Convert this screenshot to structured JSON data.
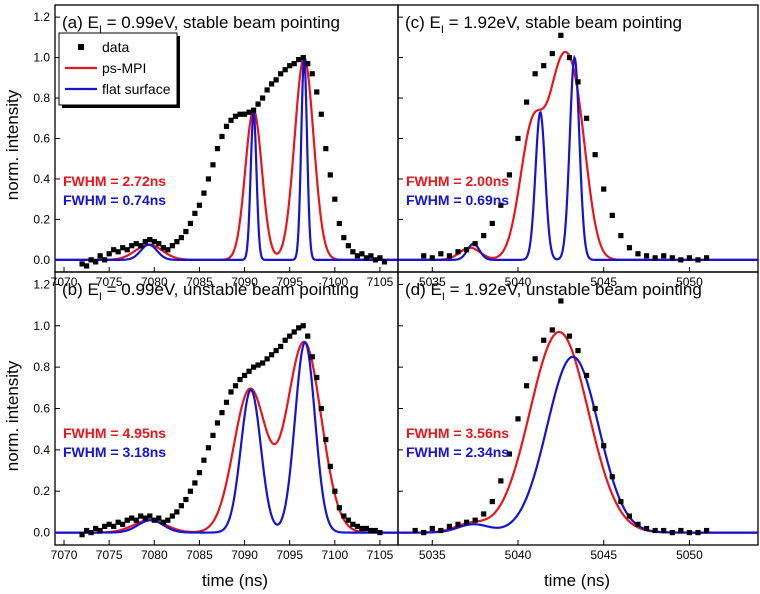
{
  "figure": {
    "ylabel": "norm. intensity",
    "xlabel": "time (ns)",
    "legend": {
      "placement": "top-left of panel (a)",
      "entries": [
        {
          "label": "data",
          "color": "#000000",
          "marker": "square"
        },
        {
          "label": "ps-MPI",
          "color": "#e8161b",
          "marker": "line"
        },
        {
          "label": "flat surface",
          "color": "#1414d2",
          "marker": "line"
        }
      ]
    },
    "colors": {
      "data": "#000000",
      "mpi": "#e8161b",
      "flat": "#1414d2"
    }
  },
  "chart_data": [
    {
      "panel": "a",
      "type": "line",
      "title_pre": "(a) E",
      "title_sub": "I",
      "title_post": " = 0.99eV, stable beam pointing",
      "xlim": [
        7069,
        7107
      ],
      "ylim": [
        -0.06,
        1.26
      ],
      "yticks": [
        "0.0",
        "0.2",
        "0.4",
        "0.6",
        "0.8",
        "1.0",
        "1.2"
      ],
      "ytick_values": [
        0,
        0.2,
        0.4,
        0.6,
        0.8,
        1.0,
        1.2
      ],
      "xticks": [
        "7070",
        "7075",
        "7080",
        "7085",
        "7090",
        "7095",
        "7100",
        "7105"
      ],
      "xtick_values": [
        7070,
        7075,
        7080,
        7085,
        7090,
        7095,
        7100,
        7105
      ],
      "fwhm_red": "FWHM = 2.72ns",
      "fwhm_blue": "FWHM = 0.74ns",
      "series": [
        {
          "name": "data",
          "kind": "scatter",
          "x": [
            7072.0,
            7072.5,
            7073.0,
            7073.5,
            7074.0,
            7074.5,
            7075.0,
            7075.5,
            7076.0,
            7076.5,
            7077.0,
            7077.5,
            7078.0,
            7078.5,
            7079.0,
            7079.5,
            7080.0,
            7080.5,
            7081.0,
            7081.5,
            7082.0,
            7082.5,
            7083.0,
            7083.5,
            7084.0,
            7084.5,
            7085.0,
            7085.5,
            7086.0,
            7086.5,
            7087.0,
            7087.5,
            7088.0,
            7088.5,
            7089.0,
            7089.5,
            7090.0,
            7090.5,
            7091.0,
            7091.5,
            7092.0,
            7092.5,
            7093.0,
            7093.5,
            7094.0,
            7094.5,
            7095.0,
            7095.5,
            7096.0,
            7096.5,
            7097.0,
            7097.5,
            7098.0,
            7098.5,
            7099.0,
            7099.5,
            7100.0,
            7100.5,
            7101.0,
            7101.5,
            7102.0,
            7102.5,
            7103.0,
            7103.5,
            7104.0,
            7104.5,
            7105.0,
            7105.5
          ],
          "y": [
            -0.02,
            -0.03,
            0.0,
            -0.01,
            0.02,
            0.0,
            0.03,
            0.05,
            0.04,
            0.06,
            0.05,
            0.07,
            0.08,
            0.07,
            0.09,
            0.1,
            0.09,
            0.08,
            0.06,
            0.05,
            0.07,
            0.09,
            0.11,
            0.14,
            0.18,
            0.23,
            0.27,
            0.33,
            0.4,
            0.47,
            0.55,
            0.61,
            0.66,
            0.69,
            0.71,
            0.72,
            0.72,
            0.73,
            0.74,
            0.77,
            0.8,
            0.84,
            0.87,
            0.89,
            0.92,
            0.94,
            0.96,
            0.97,
            0.99,
            1.0,
            0.97,
            0.92,
            0.83,
            0.72,
            0.55,
            0.42,
            0.3,
            0.18,
            0.11,
            0.07,
            0.04,
            0.02,
            0.03,
            0.01,
            0.02,
            0.0,
            0.01,
            -0.01
          ]
        },
        {
          "name": "ps-MPI",
          "kind": "line",
          "components": [
            [
              0.075,
              7079.4,
              1.5
            ],
            [
              0.74,
              7091.0,
              0.92
            ],
            [
              1.0,
              7096.6,
              1.05
            ]
          ]
        },
        {
          "name": "flat surface",
          "kind": "line",
          "components": [
            [
              0.075,
              7079.4,
              0.9
            ],
            [
              0.73,
              7091.0,
              0.32
            ],
            [
              1.0,
              7096.6,
              0.32
            ]
          ]
        }
      ]
    },
    {
      "panel": "c",
      "type": "line",
      "title_pre": "(c) E",
      "title_sub": "I",
      "title_post": " = 1.92eV, stable beam pointing",
      "xlim": [
        5033,
        5054
      ],
      "ylim": [
        -0.06,
        1.26
      ],
      "yticks": [],
      "ytick_values": [],
      "xticks": [
        "5035",
        "5040",
        "5045",
        "5050"
      ],
      "xtick_values": [
        5035,
        5040,
        5045,
        5050
      ],
      "fwhm_red": "FWHM = 2.00ns",
      "fwhm_blue": "FWHM = 0.69ns",
      "series": [
        {
          "name": "data",
          "kind": "scatter",
          "x": [
            5034.5,
            5035.0,
            5035.5,
            5036.0,
            5036.5,
            5037.0,
            5037.5,
            5038.0,
            5038.5,
            5039.0,
            5039.5,
            5040.0,
            5040.5,
            5041.0,
            5041.5,
            5042.0,
            5042.5,
            5043.0,
            5043.5,
            5044.0,
            5044.5,
            5045.0,
            5045.5,
            5046.0,
            5046.5,
            5047.0,
            5047.5,
            5048.0,
            5048.5,
            5049.0,
            5049.5,
            5050.0,
            5050.5,
            5051.0
          ],
          "y": [
            0.02,
            0.01,
            0.03,
            0.02,
            0.04,
            0.05,
            0.08,
            0.12,
            0.18,
            0.27,
            0.42,
            0.6,
            0.78,
            0.92,
            0.96,
            1.02,
            1.11,
            1.0,
            0.88,
            0.7,
            0.52,
            0.35,
            0.22,
            0.12,
            0.06,
            0.03,
            0.02,
            0.01,
            0.02,
            0.01,
            0.0,
            0.01,
            0.0,
            0.01
          ]
        },
        {
          "name": "ps-MPI",
          "kind": "line",
          "components": [
            [
              0.06,
              5037.2,
              0.6
            ],
            [
              0.68,
              5040.9,
              0.75
            ],
            [
              0.56,
              5042.3,
              0.6
            ],
            [
              0.78,
              5043.3,
              0.7
            ]
          ]
        },
        {
          "name": "flat surface",
          "kind": "line",
          "components": [
            [
              0.08,
              5037.4,
              0.35
            ],
            [
              0.73,
              5041.3,
              0.28
            ],
            [
              1.0,
              5043.3,
              0.28
            ]
          ]
        }
      ]
    },
    {
      "panel": "b",
      "type": "line",
      "title_pre": "(b) E",
      "title_sub": "I",
      "title_post": " = 0.99eV, unstable beam pointing",
      "xlim": [
        7069,
        7107
      ],
      "ylim": [
        -0.06,
        1.26
      ],
      "yticks": [
        "0.0",
        "0.2",
        "0.4",
        "0.6",
        "0.8",
        "1.0",
        "1.2"
      ],
      "ytick_values": [
        0,
        0.2,
        0.4,
        0.6,
        0.8,
        1.0,
        1.2
      ],
      "xticks": [
        "7070",
        "7075",
        "7080",
        "7085",
        "7090",
        "7095",
        "7100",
        "7105"
      ],
      "xtick_values": [
        7070,
        7075,
        7080,
        7085,
        7090,
        7095,
        7100,
        7105
      ],
      "fwhm_red": "FWHM = 4.95ns",
      "fwhm_blue": "FWHM = 3.18ns",
      "series": [
        {
          "name": "data",
          "kind": "scatter",
          "x": [
            7072.0,
            7072.5,
            7073.0,
            7073.5,
            7074.0,
            7074.5,
            7075.0,
            7075.5,
            7076.0,
            7076.5,
            7077.0,
            7077.5,
            7078.0,
            7078.5,
            7079.0,
            7079.5,
            7080.0,
            7080.5,
            7081.0,
            7081.5,
            7082.0,
            7082.5,
            7083.0,
            7083.5,
            7084.0,
            7084.5,
            7085.0,
            7085.5,
            7086.0,
            7086.5,
            7087.0,
            7087.5,
            7088.0,
            7088.5,
            7089.0,
            7089.5,
            7090.0,
            7090.5,
            7091.0,
            7091.5,
            7092.0,
            7092.5,
            7093.0,
            7093.5,
            7094.0,
            7094.5,
            7095.0,
            7095.5,
            7096.0,
            7096.5,
            7097.0,
            7097.5,
            7098.0,
            7098.5,
            7099.0,
            7099.5,
            7100.0,
            7100.5,
            7101.0,
            7101.5,
            7102.0,
            7102.5,
            7103.0,
            7103.5,
            7104.0,
            7104.5,
            7105.0
          ],
          "y": [
            -0.01,
            0.01,
            0.0,
            0.02,
            0.01,
            0.03,
            0.04,
            0.03,
            0.05,
            0.04,
            0.06,
            0.07,
            0.06,
            0.08,
            0.07,
            0.08,
            0.06,
            0.07,
            0.05,
            0.06,
            0.08,
            0.1,
            0.13,
            0.16,
            0.2,
            0.24,
            0.29,
            0.35,
            0.41,
            0.47,
            0.53,
            0.58,
            0.63,
            0.68,
            0.71,
            0.74,
            0.76,
            0.78,
            0.8,
            0.81,
            0.82,
            0.84,
            0.86,
            0.88,
            0.9,
            0.93,
            0.95,
            0.97,
            0.99,
            1.0,
            0.95,
            0.85,
            0.75,
            0.6,
            0.45,
            0.32,
            0.2,
            0.12,
            0.08,
            0.06,
            0.04,
            0.03,
            0.02,
            0.02,
            0.01,
            0.01,
            0.0
          ]
        },
        {
          "name": "ps-MPI",
          "kind": "line",
          "components": [
            [
              0.06,
              7079.5,
              1.8
            ],
            [
              0.69,
              7090.6,
              1.8
            ],
            [
              0.92,
              7096.6,
              1.9
            ]
          ]
        },
        {
          "name": "flat surface",
          "kind": "line",
          "components": [
            [
              0.06,
              7079.6,
              1.4
            ],
            [
              0.69,
              7090.7,
              1.1
            ],
            [
              0.92,
              7096.7,
              1.1
            ]
          ]
        }
      ]
    },
    {
      "panel": "d",
      "type": "line",
      "title_pre": "(d) E",
      "title_sub": "I",
      "title_post": " = 1.92eV, unstable beam pointing",
      "xlim": [
        5033,
        5054
      ],
      "ylim": [
        -0.06,
        1.26
      ],
      "yticks": [],
      "ytick_values": [],
      "xticks": [
        "5035",
        "5040",
        "5045",
        "5050"
      ],
      "xtick_values": [
        5035,
        5040,
        5045,
        5050
      ],
      "fwhm_red": "FWHM = 3.56ns",
      "fwhm_blue": "FWHM = 2.34ns",
      "series": [
        {
          "name": "data",
          "kind": "scatter",
          "x": [
            5034.0,
            5034.5,
            5035.0,
            5035.5,
            5036.0,
            5036.5,
            5037.0,
            5037.5,
            5038.0,
            5038.5,
            5039.0,
            5039.5,
            5040.0,
            5040.5,
            5041.0,
            5041.5,
            5042.0,
            5042.5,
            5043.0,
            5043.5,
            5044.0,
            5044.5,
            5045.0,
            5045.5,
            5046.0,
            5046.5,
            5047.0,
            5047.5,
            5048.0,
            5048.5,
            5049.0,
            5049.5,
            5050.0,
            5050.5,
            5051.0
          ],
          "y": [
            0.01,
            0.0,
            0.02,
            0.01,
            0.03,
            0.04,
            0.05,
            0.06,
            0.09,
            0.15,
            0.25,
            0.38,
            0.55,
            0.71,
            0.84,
            0.93,
            0.98,
            1.12,
            0.95,
            0.88,
            0.76,
            0.6,
            0.42,
            0.27,
            0.15,
            0.08,
            0.04,
            0.02,
            0.01,
            0.01,
            0.0,
            0.01,
            0.0,
            0.0,
            0.01
          ]
        },
        {
          "name": "ps-MPI",
          "kind": "line",
          "components": [
            [
              0.04,
              5037.2,
              0.9
            ],
            [
              0.97,
              5042.4,
              1.7
            ]
          ]
        },
        {
          "name": "flat surface",
          "kind": "line",
          "components": [
            [
              0.04,
              5037.4,
              0.9
            ],
            [
              0.85,
              5043.2,
              1.5
            ]
          ]
        }
      ]
    }
  ]
}
